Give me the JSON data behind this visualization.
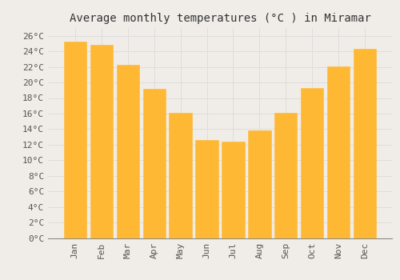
{
  "title": "Average monthly temperatures (°C ) in Miramar",
  "months": [
    "Jan",
    "Feb",
    "Mar",
    "Apr",
    "May",
    "Jun",
    "Jul",
    "Aug",
    "Sep",
    "Oct",
    "Nov",
    "Dec"
  ],
  "values": [
    25.3,
    24.8,
    22.3,
    19.2,
    16.1,
    12.6,
    12.4,
    13.8,
    16.1,
    19.3,
    22.1,
    24.3
  ],
  "bar_color_top": "#FFB833",
  "bar_color_bottom": "#FFA500",
  "bar_edge_color": "#E8950A",
  "background_color": "#F0EDE8",
  "grid_color": "#DDDDDD",
  "ylim": [
    0,
    27
  ],
  "ytick_step": 2,
  "title_fontsize": 10,
  "tick_fontsize": 8,
  "tick_font_family": "monospace"
}
